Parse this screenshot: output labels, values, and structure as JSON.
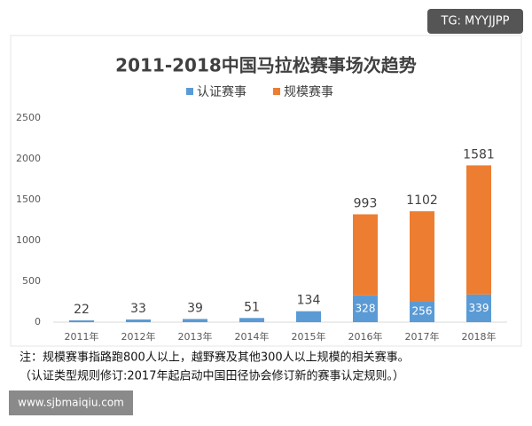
{
  "chart_data": {
    "type": "stacked_bar",
    "title": "2011-2018中国马拉松赛事场次趋势",
    "categories": [
      "2011年",
      "2012年",
      "2013年",
      "2014年",
      "2015年",
      "2016年",
      "2017年",
      "2018年"
    ],
    "series": [
      {
        "name": "认证赛事",
        "color": "#5b9bd5",
        "values": [
          22,
          33,
          39,
          51,
          134,
          328,
          256,
          339
        ]
      },
      {
        "name": "规模赛事",
        "color": "#ed7d31",
        "values": [
          null,
          null,
          null,
          null,
          null,
          993,
          1102,
          1581
        ]
      }
    ],
    "ylim": [
      0,
      2500
    ],
    "yticks": [
      0,
      500,
      1000,
      1500,
      2000,
      2500
    ],
    "grid": false,
    "legend": "top",
    "notes": [
      "注：规模赛事指路跑800人以上，越野赛及其他300人以上规模的相关赛事。",
      "（认证类型规则修订:2017年起启动中国田径协会修订新的赛事认定规则。）"
    ],
    "watermark": "TG: MYYJJPP",
    "source": "www.sjbmaiqiu.com"
  }
}
